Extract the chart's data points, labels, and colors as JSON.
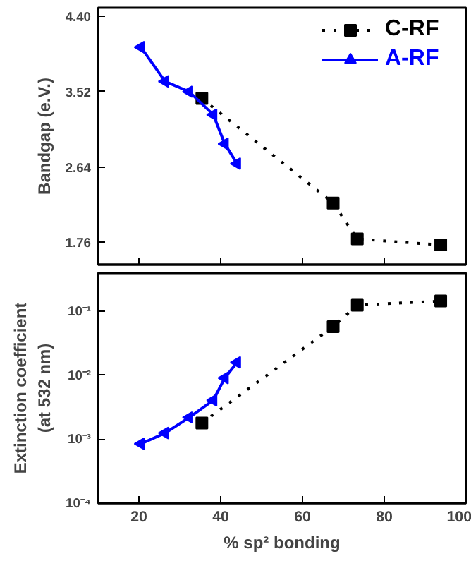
{
  "chart_data": [
    {
      "type": "line",
      "ylabel": "Bandgap (e.V.)",
      "xlim": [
        10,
        100
      ],
      "ylim": [
        1.5,
        4.5
      ],
      "xticks": [
        {
          "value": 20,
          "label": null
        },
        {
          "value": 40,
          "label": null
        },
        {
          "value": 60,
          "label": null
        },
        {
          "value": 80,
          "label": null
        },
        {
          "value": 100,
          "label": null
        }
      ],
      "yticks": [
        {
          "value": 1.76,
          "label": "1.76"
        },
        {
          "value": 2.64,
          "label": "2.64"
        },
        {
          "value": 3.52,
          "label": "3.52"
        },
        {
          "value": 4.4,
          "label": "4.40"
        }
      ],
      "tick_labels": "y",
      "grid": false,
      "legend": "top right",
      "series": [
        {
          "name": "C-RF",
          "color": "#000000",
          "marker": "square",
          "line_style": "dotted",
          "x": [
            35.4,
            67.5,
            73.4,
            93.8
          ],
          "values": [
            3.44,
            2.22,
            1.8,
            1.73
          ]
        },
        {
          "name": "A-RF",
          "color": "#0000ff",
          "marker": "triangle",
          "line_style": "solid",
          "x": [
            20.5,
            26.4,
            32.3,
            38.2,
            41.0,
            44.0
          ],
          "values": [
            4.04,
            3.64,
            3.52,
            3.25,
            2.91,
            2.68
          ]
        }
      ]
    },
    {
      "type": "line",
      "xlabel": "% sp² bonding",
      "ylabel": "Extinction coefficient\n(at 532 nm)",
      "log": "y",
      "xlim": [
        10,
        100
      ],
      "ylim": [
        0.0001,
        0.4
      ],
      "xticks": [
        20,
        40,
        60,
        80,
        100
      ],
      "yticks": [
        {
          "value": 0.0001,
          "label": "10⁻⁴"
        },
        {
          "value": 0.001,
          "label": "10⁻³"
        },
        {
          "value": 0.01,
          "label": "10⁻²"
        },
        {
          "value": 0.1,
          "label": "10⁻¹"
        }
      ],
      "grid": false,
      "series": [
        {
          "color": "#000000",
          "marker": "square",
          "line_style": "dotted",
          "x": [
            35.4,
            67.5,
            73.4,
            93.8
          ],
          "values": [
            0.0018,
            0.058,
            0.126,
            0.146
          ]
        },
        {
          "color": "#0000ff",
          "marker": "triangle",
          "line_style": "solid",
          "x": [
            20.5,
            26.4,
            32.3,
            38.2,
            41.0,
            44.0
          ],
          "values": [
            0.00085,
            0.00125,
            0.0022,
            0.0041,
            0.0091,
            0.016
          ]
        }
      ]
    }
  ]
}
